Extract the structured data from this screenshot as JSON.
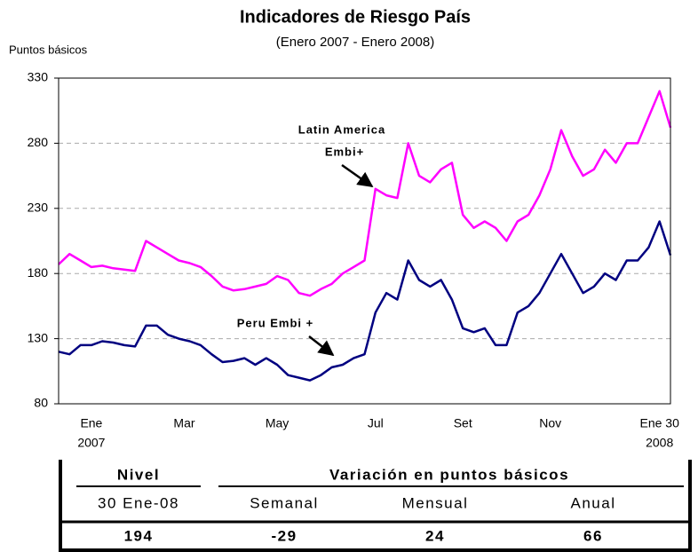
{
  "chart_data": {
    "type": "line",
    "title": "Indicadores de Riesgo País",
    "subtitle": "(Enero 2007 - Enero 2008)",
    "y_label": "Puntos básicos",
    "x": [
      0,
      1,
      2,
      3,
      4,
      5,
      6,
      7,
      8,
      9,
      10,
      11,
      12,
      13,
      14,
      15,
      16,
      17,
      18,
      19,
      20,
      21,
      22,
      23,
      24,
      25,
      26,
      27,
      28,
      29,
      30,
      31,
      32,
      33,
      34,
      35,
      36,
      37,
      38,
      39,
      40,
      41,
      42,
      43,
      44,
      45,
      46,
      47,
      48,
      49,
      50,
      51,
      52,
      53,
      54,
      55,
      56
    ],
    "series": [
      {
        "name": "Latin America Embi+",
        "color": "#ff00ff",
        "values": [
          187,
          195,
          190,
          185,
          186,
          184,
          183,
          182,
          205,
          200,
          195,
          190,
          188,
          185,
          178,
          170,
          167,
          168,
          170,
          172,
          178,
          175,
          165,
          163,
          168,
          172,
          180,
          185,
          190,
          245,
          240,
          238,
          280,
          255,
          250,
          260,
          265,
          225,
          215,
          220,
          215,
          205,
          220,
          225,
          240,
          260,
          290,
          270,
          255,
          260,
          275,
          265,
          280,
          280,
          300,
          320,
          292
        ]
      },
      {
        "name": "Peru Embi +",
        "color": "#000080",
        "values": [
          120,
          118,
          125,
          125,
          128,
          127,
          125,
          124,
          140,
          140,
          133,
          130,
          128,
          125,
          118,
          112,
          113,
          115,
          110,
          115,
          110,
          102,
          100,
          98,
          102,
          108,
          110,
          115,
          118,
          150,
          165,
          160,
          190,
          175,
          170,
          175,
          160,
          138,
          135,
          138,
          125,
          125,
          150,
          155,
          165,
          180,
          195,
          180,
          165,
          170,
          180,
          175,
          190,
          190,
          200,
          220,
          194
        ]
      }
    ],
    "annotations": [
      {
        "lines": [
          "Latin America",
          "Embi+"
        ]
      },
      {
        "lines": [
          "Peru Embi +"
        ]
      }
    ],
    "xlim": [
      0,
      56
    ],
    "xticks": [
      {
        "value": 3,
        "label": "Ene"
      },
      {
        "value": 11.5,
        "label": "Mar"
      },
      {
        "value": 20,
        "label": "May"
      },
      {
        "value": 29,
        "label": "Jul"
      },
      {
        "value": 37,
        "label": "Set"
      },
      {
        "value": 45,
        "label": "Nov"
      },
      {
        "value": 55,
        "label": "Ene 30"
      }
    ],
    "x_sublabels": [
      {
        "value": 3,
        "label": "2007"
      },
      {
        "value": 55,
        "label": "2008"
      }
    ],
    "ylim": [
      80,
      330
    ],
    "yticks": [
      80,
      130,
      180,
      230,
      280,
      330
    ],
    "grid": true
  },
  "table": {
    "header": [
      "Nivel",
      "Variación en puntos básicos"
    ],
    "subheader": [
      "30 Ene-08",
      "Semanal",
      "Mensual",
      "Anual"
    ],
    "values": [
      "194",
      "-29",
      "24",
      "66"
    ]
  }
}
